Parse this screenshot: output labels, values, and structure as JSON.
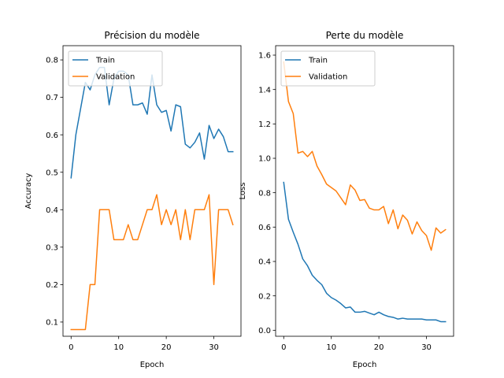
{
  "chart_data": [
    {
      "type": "line",
      "title": "Précision du modèle",
      "xlabel": "Epoch",
      "ylabel": "Accuracy",
      "xlim": [
        -1.7,
        35.7
      ],
      "ylim": [
        0.062,
        0.838
      ],
      "xticks": [
        0,
        10,
        20,
        30
      ],
      "yticks": [
        0.1,
        0.2,
        0.3,
        0.4,
        0.5,
        0.6,
        0.7,
        0.8
      ],
      "ytick_decimals": 1,
      "legend_position": "upper-left",
      "series": [
        {
          "name": "Train",
          "color": "#1f77b4",
          "x": [
            0,
            1,
            2,
            3,
            4,
            5,
            6,
            7,
            8,
            9,
            10,
            11,
            12,
            13,
            14,
            15,
            16,
            17,
            18,
            19,
            20,
            21,
            22,
            23,
            24,
            25,
            26,
            27,
            28,
            29,
            30,
            31,
            32,
            33,
            34
          ],
          "y": [
            0.485,
            0.6,
            0.67,
            0.74,
            0.72,
            0.76,
            0.78,
            0.78,
            0.68,
            0.75,
            0.77,
            0.77,
            0.76,
            0.68,
            0.68,
            0.685,
            0.655,
            0.76,
            0.68,
            0.66,
            0.665,
            0.61,
            0.68,
            0.675,
            0.575,
            0.565,
            0.58,
            0.605,
            0.535,
            0.625,
            0.59,
            0.615,
            0.595,
            0.555,
            0.555
          ]
        },
        {
          "name": "Validation",
          "color": "#ff7f0e",
          "x": [
            0,
            1,
            2,
            3,
            4,
            5,
            6,
            7,
            8,
            9,
            10,
            11,
            12,
            13,
            14,
            15,
            16,
            17,
            18,
            19,
            20,
            21,
            22,
            23,
            24,
            25,
            26,
            27,
            28,
            29,
            30,
            31,
            32,
            33,
            34
          ],
          "y": [
            0.08,
            0.08,
            0.08,
            0.08,
            0.2,
            0.2,
            0.4,
            0.4,
            0.4,
            0.32,
            0.32,
            0.32,
            0.36,
            0.32,
            0.32,
            0.36,
            0.4,
            0.4,
            0.44,
            0.36,
            0.4,
            0.36,
            0.4,
            0.32,
            0.4,
            0.32,
            0.4,
            0.4,
            0.4,
            0.44,
            0.2,
            0.4,
            0.4,
            0.4,
            0.36
          ]
        }
      ]
    },
    {
      "type": "line",
      "title": "Perte du modèle",
      "xlabel": "Epoch",
      "ylabel": "Loss",
      "xlim": [
        -1.7,
        35.7
      ],
      "ylim": [
        -0.035,
        1.655
      ],
      "xticks": [
        0,
        10,
        20,
        30
      ],
      "yticks": [
        0.0,
        0.2,
        0.4,
        0.6,
        0.8,
        1.0,
        1.2,
        1.4,
        1.6
      ],
      "ytick_decimals": 1,
      "legend_position": "upper-left",
      "series": [
        {
          "name": "Train",
          "color": "#1f77b4",
          "x": [
            0,
            1,
            2,
            3,
            4,
            5,
            6,
            7,
            8,
            9,
            10,
            11,
            12,
            13,
            14,
            15,
            16,
            17,
            18,
            19,
            20,
            21,
            22,
            23,
            24,
            25,
            26,
            27,
            28,
            29,
            30,
            31,
            32,
            33,
            34
          ],
          "y": [
            0.86,
            0.645,
            0.57,
            0.5,
            0.415,
            0.375,
            0.32,
            0.29,
            0.265,
            0.215,
            0.19,
            0.175,
            0.155,
            0.13,
            0.135,
            0.105,
            0.105,
            0.11,
            0.1,
            0.09,
            0.105,
            0.09,
            0.08,
            0.075,
            0.065,
            0.07,
            0.065,
            0.065,
            0.065,
            0.065,
            0.06,
            0.06,
            0.06,
            0.05,
            0.05
          ]
        },
        {
          "name": "Validation",
          "color": "#ff7f0e",
          "x": [
            0,
            1,
            2,
            3,
            4,
            5,
            6,
            7,
            8,
            9,
            10,
            11,
            12,
            13,
            14,
            15,
            16,
            17,
            18,
            19,
            20,
            21,
            22,
            23,
            24,
            25,
            26,
            27,
            28,
            29,
            30,
            31,
            32,
            33,
            34
          ],
          "y": [
            1.56,
            1.33,
            1.26,
            1.03,
            1.04,
            1.01,
            1.04,
            0.955,
            0.905,
            0.85,
            0.83,
            0.81,
            0.77,
            0.73,
            0.845,
            0.815,
            0.755,
            0.76,
            0.71,
            0.7,
            0.7,
            0.72,
            0.62,
            0.7,
            0.59,
            0.67,
            0.64,
            0.56,
            0.63,
            0.58,
            0.55,
            0.465,
            0.595,
            0.565,
            0.585
          ]
        }
      ]
    }
  ]
}
